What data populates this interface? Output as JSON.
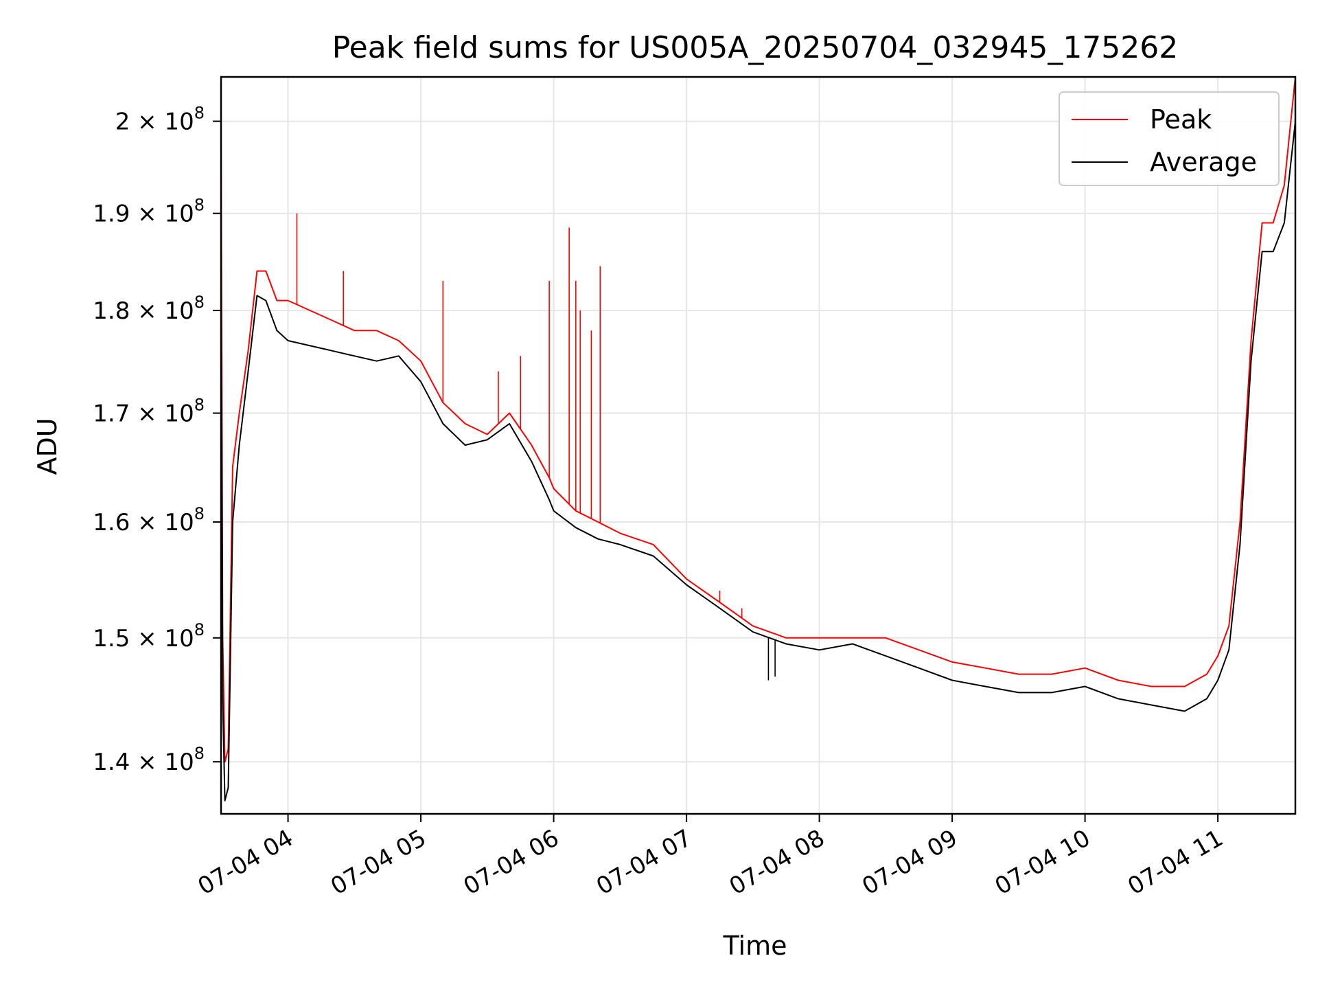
{
  "chart_data": {
    "type": "line",
    "title": "Peak field sums for US005A_20250704_032945_175262",
    "xlabel": "Time",
    "ylabel": "ADU",
    "yscale": "log",
    "xlim": [
      "07-04 03:29:45",
      "07-04 11:35:00"
    ],
    "ylim": [
      136000000,
      205000000
    ],
    "grid": true,
    "legend_position": "top-right",
    "x_ticks": [
      {
        "value": "07-04 04:00",
        "label": "07-04 04"
      },
      {
        "value": "07-04 05:00",
        "label": "07-04 05"
      },
      {
        "value": "07-04 06:00",
        "label": "07-04 06"
      },
      {
        "value": "07-04 07:00",
        "label": "07-04 07"
      },
      {
        "value": "07-04 08:00",
        "label": "07-04 08"
      },
      {
        "value": "07-04 09:00",
        "label": "07-04 09"
      },
      {
        "value": "07-04 10:00",
        "label": "07-04 10"
      },
      {
        "value": "07-04 11:00",
        "label": "07-04 11"
      }
    ],
    "y_ticks": [
      {
        "value": 140000000,
        "mantissa": "1.4 × 10",
        "exp": "8"
      },
      {
        "value": 150000000,
        "mantissa": "1.5 × 10",
        "exp": "8"
      },
      {
        "value": 160000000,
        "mantissa": "1.6 × 10",
        "exp": "8"
      },
      {
        "value": 170000000,
        "mantissa": "1.7 × 10",
        "exp": "8"
      },
      {
        "value": 180000000,
        "mantissa": "1.8 × 10",
        "exp": "8"
      },
      {
        "value": 190000000,
        "mantissa": "1.9 × 10",
        "exp": "8"
      },
      {
        "value": 200000000,
        "mantissa": "2 × 10",
        "exp": "8"
      }
    ],
    "series": [
      {
        "name": "Peak",
        "color": "#ff0000",
        "x": [
          "07-04 03:29:45",
          "07-04 03:30:30",
          "07-04 03:31:30",
          "07-04 03:33:00",
          "07-04 03:35:00",
          "07-04 03:38:00",
          "07-04 03:42:00",
          "07-04 03:46:00",
          "07-04 03:50:00",
          "07-04 03:55:00",
          "07-04 04:00:00",
          "07-04 04:10:00",
          "07-04 04:20:00",
          "07-04 04:30:00",
          "07-04 04:40:00",
          "07-04 04:50:00",
          "07-04 05:00:00",
          "07-04 05:10:00",
          "07-04 05:20:00",
          "07-04 05:30:00",
          "07-04 05:40:00",
          "07-04 05:50:00",
          "07-04 05:58:00",
          "07-04 06:00:00",
          "07-04 06:10:00",
          "07-04 06:20:00",
          "07-04 06:30:00",
          "07-04 06:45:00",
          "07-04 07:00:00",
          "07-04 07:15:00",
          "07-04 07:30:00",
          "07-04 07:45:00",
          "07-04 08:00:00",
          "07-04 08:15:00",
          "07-04 08:30:00",
          "07-04 08:45:00",
          "07-04 09:00:00",
          "07-04 09:15:00",
          "07-04 09:30:00",
          "07-04 09:45:00",
          "07-04 10:00:00",
          "07-04 10:15:00",
          "07-04 10:30:00",
          "07-04 10:45:00",
          "07-04 10:55:00",
          "07-04 11:00:00",
          "07-04 11:05:00",
          "07-04 11:10:00",
          "07-04 11:15:00",
          "07-04 11:20:00",
          "07-04 11:25:00",
          "07-04 11:30:00",
          "07-04 11:35:00"
        ],
        "values": [
          198000000,
          150000000,
          140000000,
          141000000,
          165000000,
          170000000,
          176000000,
          184000000,
          184000000,
          181000000,
          181000000,
          180000000,
          179000000,
          178000000,
          178000000,
          177000000,
          175000000,
          171000000,
          169000000,
          168000000,
          170000000,
          167000000,
          164000000,
          163000000,
          161000000,
          160000000,
          159000000,
          158000000,
          155000000,
          153000000,
          151000000,
          150000000,
          150000000,
          150000000,
          150000000,
          149000000,
          148000000,
          147500000,
          147000000,
          147000000,
          147500000,
          146500000,
          146000000,
          146000000,
          147000000,
          148500000,
          151000000,
          160000000,
          177000000,
          189000000,
          189000000,
          193000000,
          205000000
        ],
        "spikes": [
          {
            "x": "07-04 04:04:00",
            "value": 190000000
          },
          {
            "x": "07-04 04:25:00",
            "value": 184000000
          },
          {
            "x": "07-04 05:10:00",
            "value": 183000000
          },
          {
            "x": "07-04 05:35:00",
            "value": 174000000
          },
          {
            "x": "07-04 05:45:00",
            "value": 175500000
          },
          {
            "x": "07-04 05:58:00",
            "value": 183000000
          },
          {
            "x": "07-04 06:07:00",
            "value": 188500000
          },
          {
            "x": "07-04 06:10:00",
            "value": 183000000
          },
          {
            "x": "07-04 06:12:00",
            "value": 180000000
          },
          {
            "x": "07-04 06:17:00",
            "value": 178000000
          },
          {
            "x": "07-04 06:21:00",
            "value": 184500000
          },
          {
            "x": "07-04 07:15:00",
            "value": 154000000
          },
          {
            "x": "07-04 07:25:00",
            "value": 152500000
          }
        ]
      },
      {
        "name": "Average",
        "color": "#000000",
        "x": [
          "07-04 03:29:45",
          "07-04 03:30:30",
          "07-04 03:31:30",
          "07-04 03:33:00",
          "07-04 03:35:00",
          "07-04 03:38:00",
          "07-04 03:42:00",
          "07-04 03:46:00",
          "07-04 03:50:00",
          "07-04 03:55:00",
          "07-04 04:00:00",
          "07-04 04:10:00",
          "07-04 04:20:00",
          "07-04 04:30:00",
          "07-04 04:40:00",
          "07-04 04:50:00",
          "07-04 05:00:00",
          "07-04 05:10:00",
          "07-04 05:20:00",
          "07-04 05:30:00",
          "07-04 05:40:00",
          "07-04 05:50:00",
          "07-04 05:58:00",
          "07-04 06:00:00",
          "07-04 06:10:00",
          "07-04 06:20:00",
          "07-04 06:30:00",
          "07-04 06:45:00",
          "07-04 07:00:00",
          "07-04 07:15:00",
          "07-04 07:30:00",
          "07-04 07:45:00",
          "07-04 08:00:00",
          "07-04 08:15:00",
          "07-04 08:30:00",
          "07-04 08:45:00",
          "07-04 09:00:00",
          "07-04 09:15:00",
          "07-04 09:30:00",
          "07-04 09:45:00",
          "07-04 10:00:00",
          "07-04 10:15:00",
          "07-04 10:30:00",
          "07-04 10:45:00",
          "07-04 10:55:00",
          "07-04 11:00:00",
          "07-04 11:05:00",
          "07-04 11:10:00",
          "07-04 11:15:00",
          "07-04 11:20:00",
          "07-04 11:25:00",
          "07-04 11:30:00",
          "07-04 11:35:00"
        ],
        "values": [
          188000000,
          145000000,
          137000000,
          138000000,
          160000000,
          167000000,
          174000000,
          181500000,
          181000000,
          178000000,
          177000000,
          176500000,
          176000000,
          175500000,
          175000000,
          175500000,
          173000000,
          169000000,
          167000000,
          167500000,
          169000000,
          165500000,
          162000000,
          161000000,
          159500000,
          158500000,
          158000000,
          157000000,
          154500000,
          152500000,
          150500000,
          149500000,
          149000000,
          149500000,
          148500000,
          147500000,
          146500000,
          146000000,
          145500000,
          145500000,
          146000000,
          145000000,
          144500000,
          144000000,
          145000000,
          146500000,
          149000000,
          158000000,
          175000000,
          186000000,
          186000000,
          189000000,
          200000000
        ],
        "dips": [
          {
            "x": "07-04 07:37:00",
            "value": 146500000
          },
          {
            "x": "07-04 07:40:00",
            "value": 146800000
          }
        ]
      }
    ]
  }
}
